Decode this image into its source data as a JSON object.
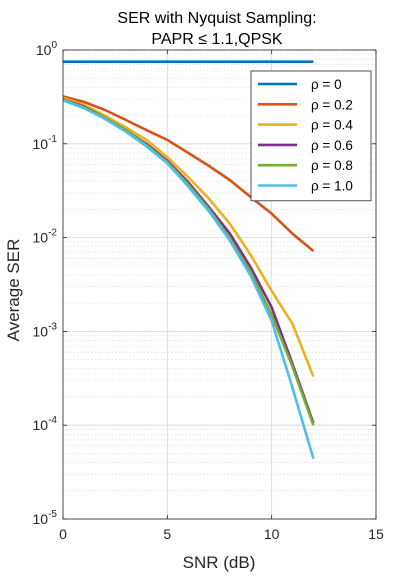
{
  "chart_data": {
    "type": "line",
    "title": [
      "SER with Nyquist Sampling:",
      "PAPR ≤ 1.1,QPSK"
    ],
    "xlabel": "SNR (dB)",
    "ylabel": "Average SER",
    "xlim": [
      0,
      15
    ],
    "ylim": [
      1e-05,
      1
    ],
    "yscale": "log",
    "grid": true,
    "minor_grid": true,
    "legend_position": "top-right",
    "x_ticks": [
      0,
      5,
      10,
      15
    ],
    "x_tick_labels": [
      "0",
      "5",
      "10",
      "15"
    ],
    "y_ticks": [
      1,
      0.1,
      0.01,
      0.001,
      0.0001,
      1e-05
    ],
    "y_tick_labels": [
      {
        "base": "10",
        "exp": "0"
      },
      {
        "base": "10",
        "exp": "-1"
      },
      {
        "base": "10",
        "exp": "-2"
      },
      {
        "base": "10",
        "exp": "-3"
      },
      {
        "base": "10",
        "exp": "-4"
      },
      {
        "base": "10",
        "exp": "-5"
      }
    ],
    "x": [
      0,
      1,
      2,
      3,
      4,
      5,
      6,
      7,
      8,
      9,
      10,
      11,
      12
    ],
    "series": [
      {
        "name": "ρ = 0",
        "color": "#0072BD",
        "values": [
          0.75,
          0.75,
          0.75,
          0.75,
          0.75,
          0.75,
          0.75,
          0.75,
          0.75,
          0.75,
          0.75,
          0.75,
          0.75
        ]
      },
      {
        "name": "ρ = 0.2",
        "color": "#D95319",
        "values": [
          0.32,
          0.28,
          0.23,
          0.18,
          0.14,
          0.11,
          0.08,
          0.058,
          0.041,
          0.027,
          0.018,
          0.011,
          0.0072
        ]
      },
      {
        "name": "ρ = 0.4",
        "color": "#EDB120",
        "values": [
          0.31,
          0.26,
          0.2,
          0.15,
          0.11,
          0.072,
          0.044,
          0.026,
          0.014,
          0.0065,
          0.0027,
          0.0012,
          0.00033
        ]
      },
      {
        "name": "ρ = 0.6",
        "color": "#7E2F8E",
        "values": [
          0.3,
          0.25,
          0.19,
          0.14,
          0.1,
          0.066,
          0.039,
          0.021,
          0.011,
          0.0048,
          0.0018,
          0.00045,
          0.000105
        ]
      },
      {
        "name": "ρ = 0.8",
        "color": "#77AC30",
        "values": [
          0.3,
          0.245,
          0.19,
          0.14,
          0.097,
          0.064,
          0.037,
          0.02,
          0.0098,
          0.0043,
          0.0015,
          0.00042,
          0.0001
        ]
      },
      {
        "name": "ρ = 1.0",
        "color": "#4DBEEE",
        "values": [
          0.29,
          0.24,
          0.185,
          0.135,
          0.094,
          0.062,
          0.035,
          0.019,
          0.0093,
          0.0039,
          0.0013,
          0.00025,
          4.4e-05
        ]
      }
    ]
  }
}
